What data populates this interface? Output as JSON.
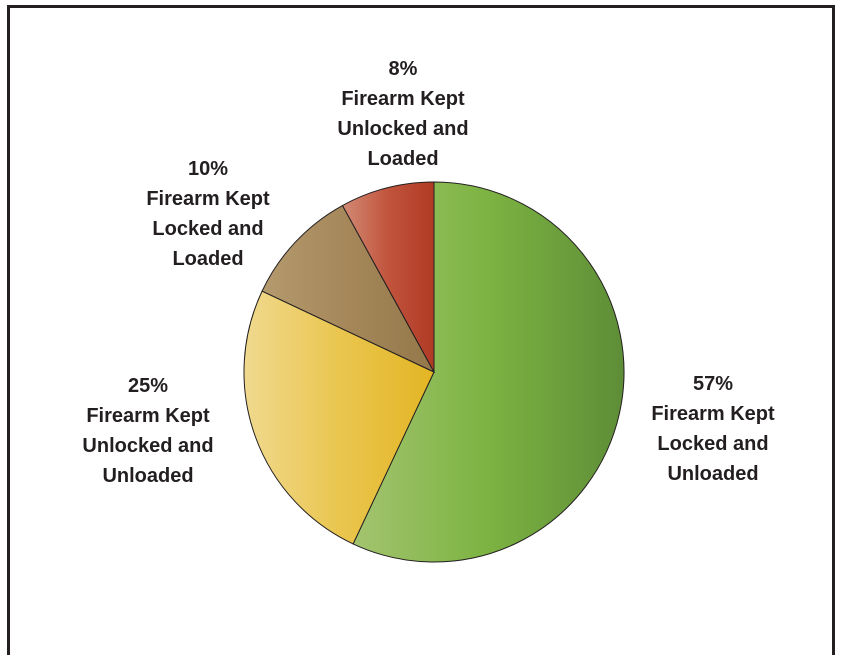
{
  "chart_data": {
    "type": "pie",
    "slices": [
      {
        "pct": "57%",
        "value": 57,
        "label_lines": [
          "Firearm Kept",
          "Locked and",
          "Unloaded"
        ],
        "color_dark": "#5e8d37",
        "color_mid": "#7cb342",
        "color_light": "#a3c46f"
      },
      {
        "pct": "25%",
        "value": 25,
        "label_lines": [
          "Firearm Kept",
          "Unlocked and",
          "Unloaded"
        ],
        "color_dark": "#e3b524",
        "color_mid": "#eac64f",
        "color_light": "#f0d98f"
      },
      {
        "pct": "10%",
        "value": 10,
        "label_lines": [
          "Firearm Kept",
          "Locked and",
          "Loaded"
        ],
        "color_dark": "#94784a",
        "color_mid": "#a5875a",
        "color_light": "#b49a6e"
      },
      {
        "pct": "8%",
        "value": 8,
        "label_lines": [
          "Firearm Kept",
          "Unlocked and",
          "Loaded"
        ],
        "color_dark": "#b03a25",
        "color_mid": "#c1543d",
        "color_light": "#d28a74"
      }
    ]
  }
}
